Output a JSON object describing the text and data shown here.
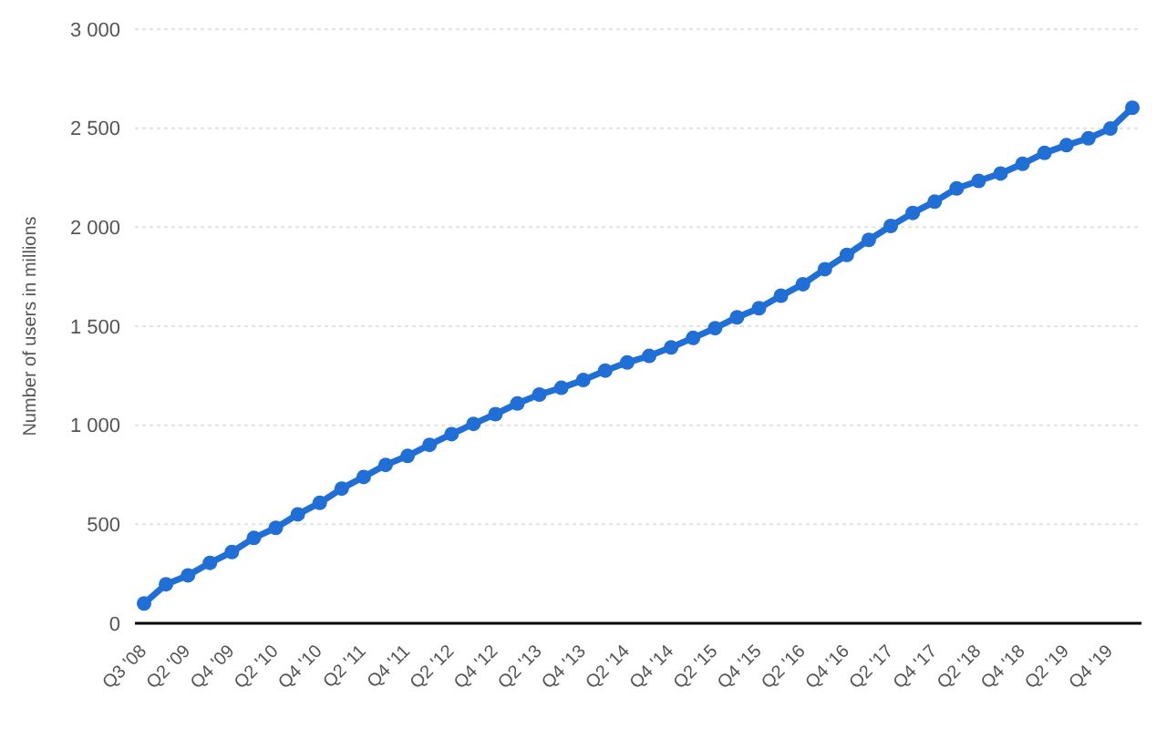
{
  "chart_data": {
    "type": "line",
    "ylabel": "Number of users in millions",
    "categories": [
      "Q3 '08",
      null,
      "Q2 '09",
      null,
      "Q4 '09",
      null,
      "Q2 '10",
      null,
      "Q4 '10",
      null,
      "Q2 '11",
      null,
      "Q4 '11",
      null,
      "Q2 '12",
      null,
      "Q4 '12",
      null,
      "Q2 '13",
      null,
      "Q4 '13",
      null,
      "Q2 '14",
      null,
      "Q4 '14",
      null,
      "Q2 '15",
      null,
      "Q4 '15",
      null,
      "Q2 '16",
      null,
      "Q4 '16",
      null,
      "Q2 '17",
      null,
      "Q4 '17",
      null,
      "Q2 '18",
      null,
      "Q4 '18",
      null,
      "Q2 '19",
      null,
      "Q4 '19",
      null
    ],
    "series": [
      {
        "color": "#1f6fd6",
        "values": [
          100,
          197,
          242,
          305,
          360,
          431,
          482,
          550,
          608,
          680,
          739,
          800,
          845,
          901,
          955,
          1007,
          1056,
          1110,
          1155,
          1189,
          1228,
          1276,
          1317,
          1350,
          1393,
          1441,
          1490,
          1545,
          1591,
          1654,
          1712,
          1788,
          1860,
          1936,
          2006,
          2072,
          2129,
          2196,
          2234,
          2271,
          2320,
          2375,
          2414,
          2449,
          2498,
          2603
        ]
      }
    ],
    "ylim": [
      0,
      3000
    ],
    "yticks": [
      {
        "value": 0,
        "label": "0"
      },
      {
        "value": 500,
        "label": "500"
      },
      {
        "value": 1000,
        "label": "1 000"
      },
      {
        "value": 1500,
        "label": "1 500"
      },
      {
        "value": 2000,
        "label": "2 000"
      },
      {
        "value": 2500,
        "label": "2 500"
      },
      {
        "value": 3000,
        "label": "3 000"
      }
    ],
    "grid": "y",
    "marker": "circle",
    "line_style": "solid"
  }
}
